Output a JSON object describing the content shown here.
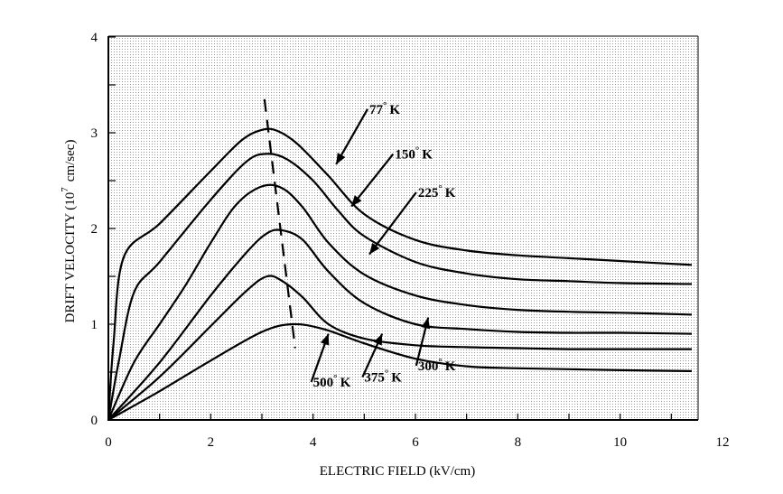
{
  "chart_data": {
    "type": "line",
    "xlabel": "ELECTRIC FIELD (kV/cm)",
    "ylabel_main": "DRIFT VELOCITY (10",
    "ylabel_exp": "7",
    "ylabel_unit": "cm/sec)",
    "xlim": [
      0,
      12
    ],
    "ylim": [
      0,
      4
    ],
    "x_ticks": [
      "0",
      "2",
      "4",
      "6",
      "8",
      "10",
      "12"
    ],
    "y_ticks": [
      "0",
      "1",
      "2",
      "3",
      "4"
    ],
    "grid": false,
    "series": [
      {
        "name": "77° K",
        "label_text": "77",
        "label_unit": "K",
        "points": [
          [
            0,
            0
          ],
          [
            0.1,
            0.8
          ],
          [
            0.3,
            1.7
          ],
          [
            1,
            2.05
          ],
          [
            2,
            2.6
          ],
          [
            2.6,
            2.92
          ],
          [
            3.0,
            3.03
          ],
          [
            3.3,
            3.02
          ],
          [
            3.7,
            2.88
          ],
          [
            4.3,
            2.55
          ],
          [
            5,
            2.15
          ],
          [
            6,
            1.88
          ],
          [
            7,
            1.77
          ],
          [
            8,
            1.72
          ],
          [
            9,
            1.69
          ],
          [
            10,
            1.66
          ],
          [
            11.4,
            1.62
          ]
        ]
      },
      {
        "name": "150° K",
        "label_text": "150",
        "label_unit": "K",
        "points": [
          [
            0,
            0
          ],
          [
            0.2,
            0.6
          ],
          [
            0.5,
            1.33
          ],
          [
            1,
            1.65
          ],
          [
            2,
            2.3
          ],
          [
            2.7,
            2.7
          ],
          [
            3.1,
            2.78
          ],
          [
            3.5,
            2.72
          ],
          [
            4,
            2.5
          ],
          [
            4.5,
            2.18
          ],
          [
            5,
            1.92
          ],
          [
            6,
            1.65
          ],
          [
            7,
            1.53
          ],
          [
            8,
            1.47
          ],
          [
            9,
            1.45
          ],
          [
            10,
            1.43
          ],
          [
            11.4,
            1.42
          ]
        ]
      },
      {
        "name": "225° K",
        "label_text": "225",
        "label_unit": "K",
        "points": [
          [
            0,
            0
          ],
          [
            0.5,
            0.6
          ],
          [
            1,
            1.0
          ],
          [
            1.5,
            1.4
          ],
          [
            2,
            1.85
          ],
          [
            2.5,
            2.25
          ],
          [
            3,
            2.44
          ],
          [
            3.4,
            2.42
          ],
          [
            3.8,
            2.22
          ],
          [
            4.3,
            1.85
          ],
          [
            5,
            1.52
          ],
          [
            6,
            1.3
          ],
          [
            7,
            1.2
          ],
          [
            8,
            1.15
          ],
          [
            9,
            1.13
          ],
          [
            10,
            1.12
          ],
          [
            11.4,
            1.1
          ]
        ]
      },
      {
        "name": "300° K",
        "label_text": "300",
        "label_unit": "K",
        "points": [
          [
            0,
            0
          ],
          [
            1,
            0.6
          ],
          [
            2,
            1.3
          ],
          [
            2.7,
            1.75
          ],
          [
            3.1,
            1.95
          ],
          [
            3.4,
            1.98
          ],
          [
            3.8,
            1.88
          ],
          [
            4.3,
            1.55
          ],
          [
            5,
            1.22
          ],
          [
            6,
            1.0
          ],
          [
            7,
            0.95
          ],
          [
            8,
            0.92
          ],
          [
            9,
            0.91
          ],
          [
            10,
            0.91
          ],
          [
            11.4,
            0.9
          ]
        ]
      },
      {
        "name": "375° K",
        "label_text": "375",
        "label_unit": "K",
        "points": [
          [
            0,
            0
          ],
          [
            1,
            0.45
          ],
          [
            2,
            0.98
          ],
          [
            2.7,
            1.35
          ],
          [
            3.1,
            1.5
          ],
          [
            3.4,
            1.45
          ],
          [
            3.8,
            1.28
          ],
          [
            4.3,
            1.0
          ],
          [
            5,
            0.85
          ],
          [
            6,
            0.78
          ],
          [
            7,
            0.76
          ],
          [
            8,
            0.75
          ],
          [
            9,
            0.74
          ],
          [
            10,
            0.74
          ],
          [
            11.4,
            0.74
          ]
        ]
      },
      {
        "name": "500° K",
        "label_text": "500",
        "label_unit": "K",
        "points": [
          [
            0,
            0
          ],
          [
            1,
            0.3
          ],
          [
            2,
            0.62
          ],
          [
            3,
            0.92
          ],
          [
            3.6,
            1.0
          ],
          [
            4.2,
            0.95
          ],
          [
            5,
            0.8
          ],
          [
            6,
            0.64
          ],
          [
            7,
            0.56
          ],
          [
            8,
            0.54
          ],
          [
            9,
            0.53
          ],
          [
            10,
            0.52
          ],
          [
            11.4,
            0.51
          ]
        ]
      }
    ],
    "peak_locus": [
      [
        3.05,
        3.35
      ],
      [
        3.65,
        0.75
      ]
    ],
    "labels": [
      {
        "series": 0,
        "text_at": [
          5.1,
          3.2
        ],
        "arrow_to": [
          4.45,
          2.67
        ]
      },
      {
        "series": 1,
        "text_at": [
          5.6,
          2.73
        ],
        "arrow_to": [
          4.75,
          2.23
        ]
      },
      {
        "series": 2,
        "text_at": [
          6.05,
          2.33
        ],
        "arrow_to": [
          5.1,
          1.73
        ]
      },
      {
        "series": 3,
        "text_at": [
          6.05,
          0.52
        ],
        "arrow_to": [
          6.25,
          1.07
        ]
      },
      {
        "series": 4,
        "text_at": [
          5.0,
          0.4
        ],
        "arrow_to": [
          5.35,
          0.9
        ]
      },
      {
        "series": 5,
        "text_at": [
          4.0,
          0.35
        ],
        "arrow_to": [
          4.3,
          0.9
        ]
      }
    ]
  }
}
